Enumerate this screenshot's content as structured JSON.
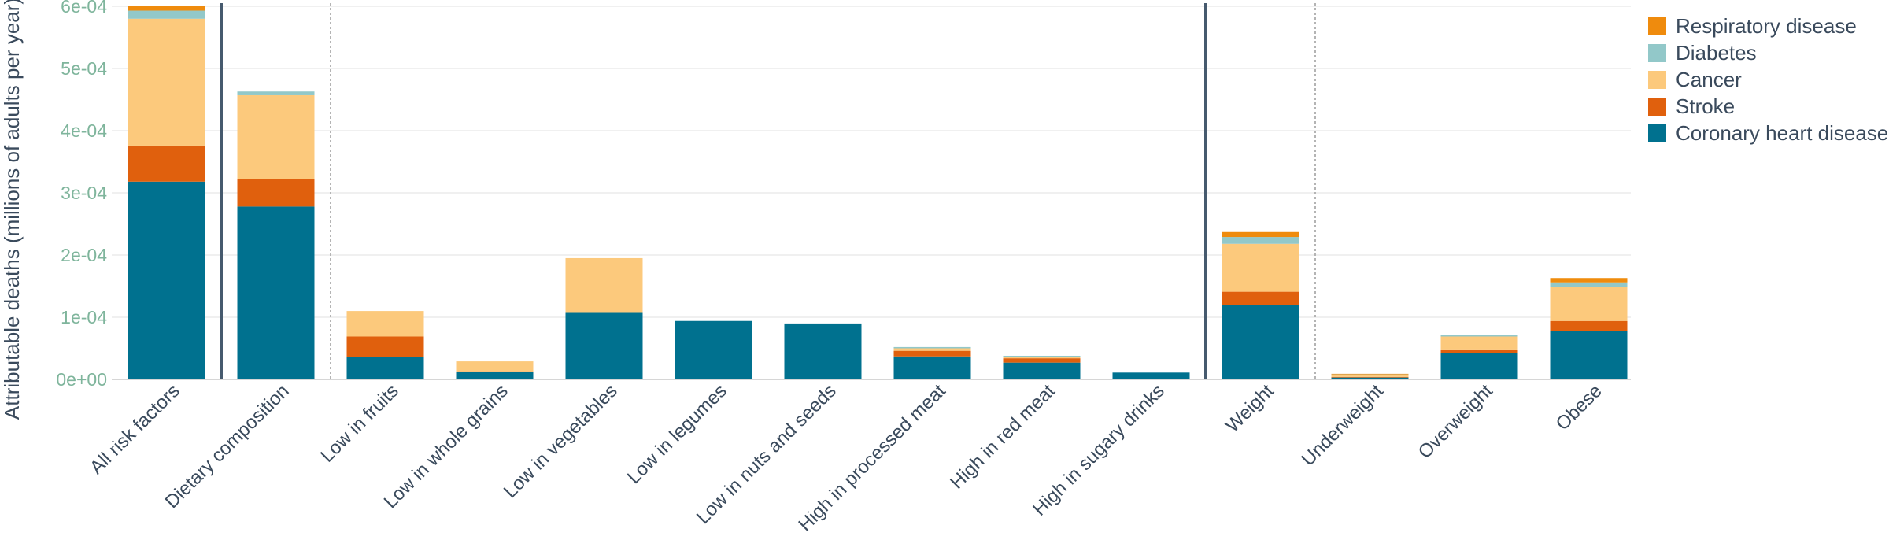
{
  "chart_data": {
    "type": "bar",
    "stacked": true,
    "ylabel": "Attributable deaths (millions of adults per year)",
    "ylim": [
      0,
      0.0006
    ],
    "yticks": [
      {
        "value": 0,
        "label": "0e+00"
      },
      {
        "value": 0.0001,
        "label": "1e-04"
      },
      {
        "value": 0.0002,
        "label": "2e-04"
      },
      {
        "value": 0.0003,
        "label": "3e-04"
      },
      {
        "value": 0.0004,
        "label": "4e-04"
      },
      {
        "value": 0.0005,
        "label": "5e-04"
      },
      {
        "value": 0.0006,
        "label": "6e-04"
      }
    ],
    "grid": true,
    "legend_position": "top-right",
    "categories": [
      "All risk factors",
      "Dietary composition",
      "Low in fruits",
      "Low in whole grains",
      "Low in vegetables",
      "Low in legumes",
      "Low in nuts and seeds",
      "High in processed meat",
      "High in red meat",
      "High in sugary drinks",
      "Weight",
      "Underweight",
      "Overweight",
      "Obese"
    ],
    "series": [
      {
        "name": "Coronary heart disease",
        "color": "#00718f",
        "values": [
          0.000318,
          0.000278,
          3.6e-05,
          1.2e-05,
          0.000107,
          9.4e-05,
          9e-05,
          3.7e-05,
          2.7e-05,
          1.1e-05,
          0.000119,
          3e-06,
          4.2e-05,
          7.8e-05
        ]
      },
      {
        "name": "Stroke",
        "color": "#e0600d",
        "values": [
          5.8e-05,
          4.4e-05,
          3.3e-05,
          1e-06,
          0.0,
          0.0,
          0.0,
          9e-06,
          7e-06,
          0.0,
          2.2e-05,
          1e-06,
          5e-06,
          1.6e-05
        ]
      },
      {
        "name": "Cancer",
        "color": "#fcc97c",
        "values": [
          0.000204,
          0.000135,
          4.1e-05,
          1.6e-05,
          8.8e-05,
          0.0,
          0.0,
          4e-06,
          2e-06,
          0.0,
          7.7e-05,
          3e-06,
          2.2e-05,
          5.5e-05
        ]
      },
      {
        "name": "Diabetes",
        "color": "#92c8c9",
        "values": [
          1.3e-05,
          6e-06,
          0.0,
          0.0,
          0.0,
          0.0,
          0.0,
          2e-06,
          2e-06,
          0.0,
          1.1e-05,
          1e-06,
          3e-06,
          7e-06
        ]
      },
      {
        "name": "Respiratory disease",
        "color": "#ef8b0d",
        "values": [
          8e-06,
          0.0,
          0.0,
          0.0,
          0.0,
          0.0,
          0.0,
          0.0,
          0.0,
          0.0,
          8e-06,
          1e-06,
          0.0,
          7e-06
        ]
      }
    ],
    "solid_dividers_after": [
      "All risk factors",
      "High in sugary drinks"
    ],
    "dotted_dividers_after": [
      "Dietary composition",
      "Weight"
    ]
  },
  "colors": {
    "tick_text": "#7fb59c",
    "axis_title": "#3a4a5c",
    "category_text": "#3a4a5c",
    "gridline": "#ececec",
    "axis_line": "#c8c8c8",
    "solid_divider": "#465a6e",
    "dotted_divider": "#b4b4b4"
  }
}
